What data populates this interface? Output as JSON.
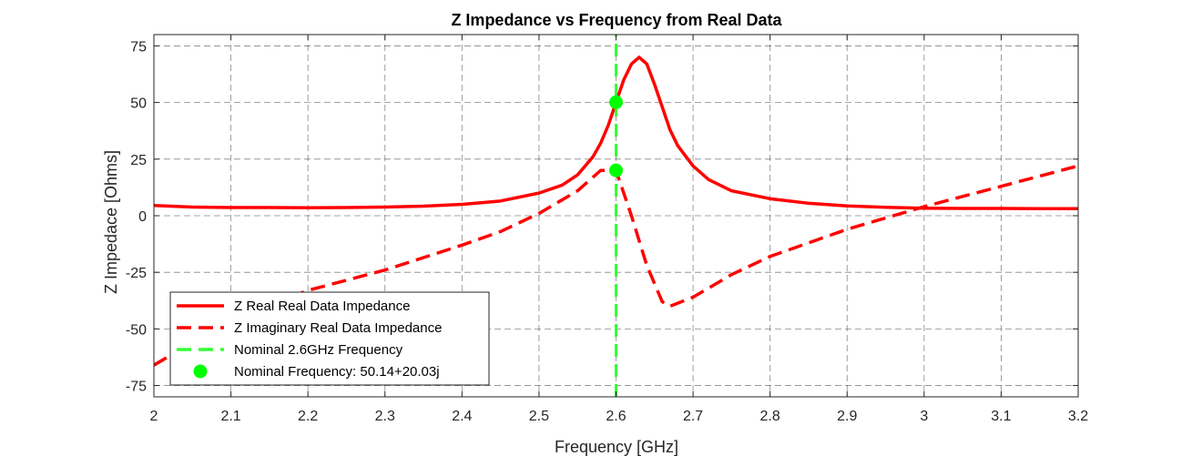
{
  "chart_data": {
    "type": "line",
    "title": "Z Impedance vs Frequency from Real Data",
    "xlabel": "Frequency [GHz]",
    "ylabel": "Z Impedace [Ohms]",
    "xlim": [
      2,
      3.2
    ],
    "ylim": [
      -80,
      80
    ],
    "xticks": [
      2,
      2.1,
      2.2,
      2.3,
      2.4,
      2.5,
      2.6,
      2.7,
      2.8,
      2.9,
      3,
      3.1,
      3.2
    ],
    "xtick_labels": [
      "2",
      "2.1",
      "2.2",
      "2.3",
      "2.4",
      "2.5",
      "2.6",
      "2.7",
      "2.8",
      "2.9",
      "3",
      "3.1",
      "3.2"
    ],
    "yticks": [
      -75,
      -50,
      -25,
      0,
      25,
      50,
      75
    ],
    "ytick_labels": [
      "-75",
      "-50",
      "-25",
      "0",
      "25",
      "50",
      "75"
    ],
    "grid": true,
    "legend_position": "bottom-left",
    "series": [
      {
        "name": "Z Real Real Data Impedance",
        "style": "solid",
        "color": "#ff0000",
        "x": [
          2.0,
          2.05,
          2.1,
          2.15,
          2.2,
          2.25,
          2.3,
          2.35,
          2.4,
          2.45,
          2.5,
          2.53,
          2.55,
          2.57,
          2.58,
          2.59,
          2.6,
          2.61,
          2.62,
          2.63,
          2.64,
          2.65,
          2.66,
          2.67,
          2.68,
          2.7,
          2.72,
          2.75,
          2.8,
          2.85,
          2.9,
          2.95,
          3.0,
          3.05,
          3.1,
          3.15,
          3.2
        ],
        "y": [
          4.5,
          3.8,
          3.6,
          3.6,
          3.5,
          3.6,
          3.8,
          4.2,
          5.0,
          6.5,
          10.0,
          13.5,
          18.0,
          26.0,
          32.0,
          40.0,
          50.1,
          60.0,
          67.0,
          70.0,
          67.0,
          58.0,
          48.0,
          38.0,
          31.0,
          22.0,
          16.0,
          11.0,
          7.5,
          5.5,
          4.3,
          3.7,
          3.3,
          3.2,
          3.2,
          3.1,
          3.1
        ]
      },
      {
        "name": "Z Imaginary Real Data Impedance",
        "style": "dashed",
        "color": "#ff0000",
        "x": [
          2.0,
          2.1,
          2.2,
          2.3,
          2.4,
          2.45,
          2.5,
          2.55,
          2.58,
          2.6,
          2.62,
          2.64,
          2.66,
          2.67,
          2.7,
          2.75,
          2.8,
          2.85,
          2.9,
          2.95,
          3.0,
          3.05,
          3.1,
          3.15,
          3.2
        ],
        "y": [
          -66.0,
          -46.0,
          -33.0,
          -24.0,
          -13.0,
          -7.0,
          1.0,
          11.0,
          20.0,
          20.0,
          0.0,
          -22.0,
          -38.0,
          -40.0,
          -36.0,
          -26.0,
          -18.0,
          -12.0,
          -6.0,
          -1.0,
          4.0,
          8.5,
          13.0,
          17.5,
          22.0
        ]
      },
      {
        "name": "Nominal 2.6GHz Frequency",
        "style": "dashed",
        "color": "#33ff33",
        "x": [
          2.6,
          2.6
        ],
        "y": [
          -80,
          80
        ]
      },
      {
        "name": "Nominal Frequency: 50.14+20.03j",
        "style": "markers",
        "color": "#00ff00",
        "x": [
          2.6,
          2.6
        ],
        "y": [
          50.14,
          20.03
        ]
      }
    ]
  }
}
